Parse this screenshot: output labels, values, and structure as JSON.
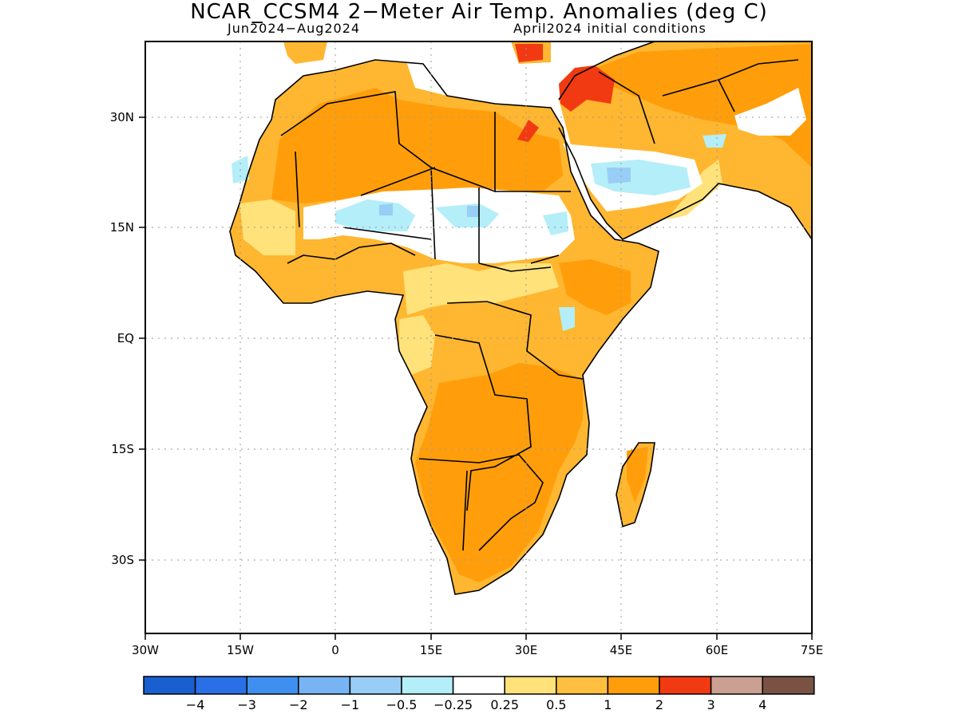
{
  "title": "NCAR_CCSM4 2−Meter Air Temp. Anomalies (deg C)",
  "subtitle_left": "Jun2024−Aug2024",
  "subtitle_right": "April2024 initial conditions",
  "map": {
    "lon_range": [
      -30,
      75
    ],
    "lat_range": [
      -40,
      40
    ],
    "lon_ticks": [
      "30W",
      "15W",
      "0",
      "15E",
      "30E",
      "45E",
      "60E",
      "75E"
    ],
    "lat_ticks": [
      "30N",
      "15N",
      "EQ",
      "15S",
      "30S"
    ],
    "gridlines": true
  },
  "legend": {
    "colors": [
      "#1a5fd0",
      "#2a6fe6",
      "#3f8ff0",
      "#78b4f4",
      "#98cdf6",
      "#b4eef8",
      "#ffffff",
      "#ffe27a",
      "#ffbf40",
      "#ff9e0a",
      "#f23a12",
      "#caa092",
      "#7a5244"
    ],
    "labels": [
      "−4",
      "−3",
      "−2",
      "−1",
      "−0.5",
      "−0.25",
      "0.25",
      "0.5",
      "1",
      "2",
      "3",
      "4"
    ]
  }
}
